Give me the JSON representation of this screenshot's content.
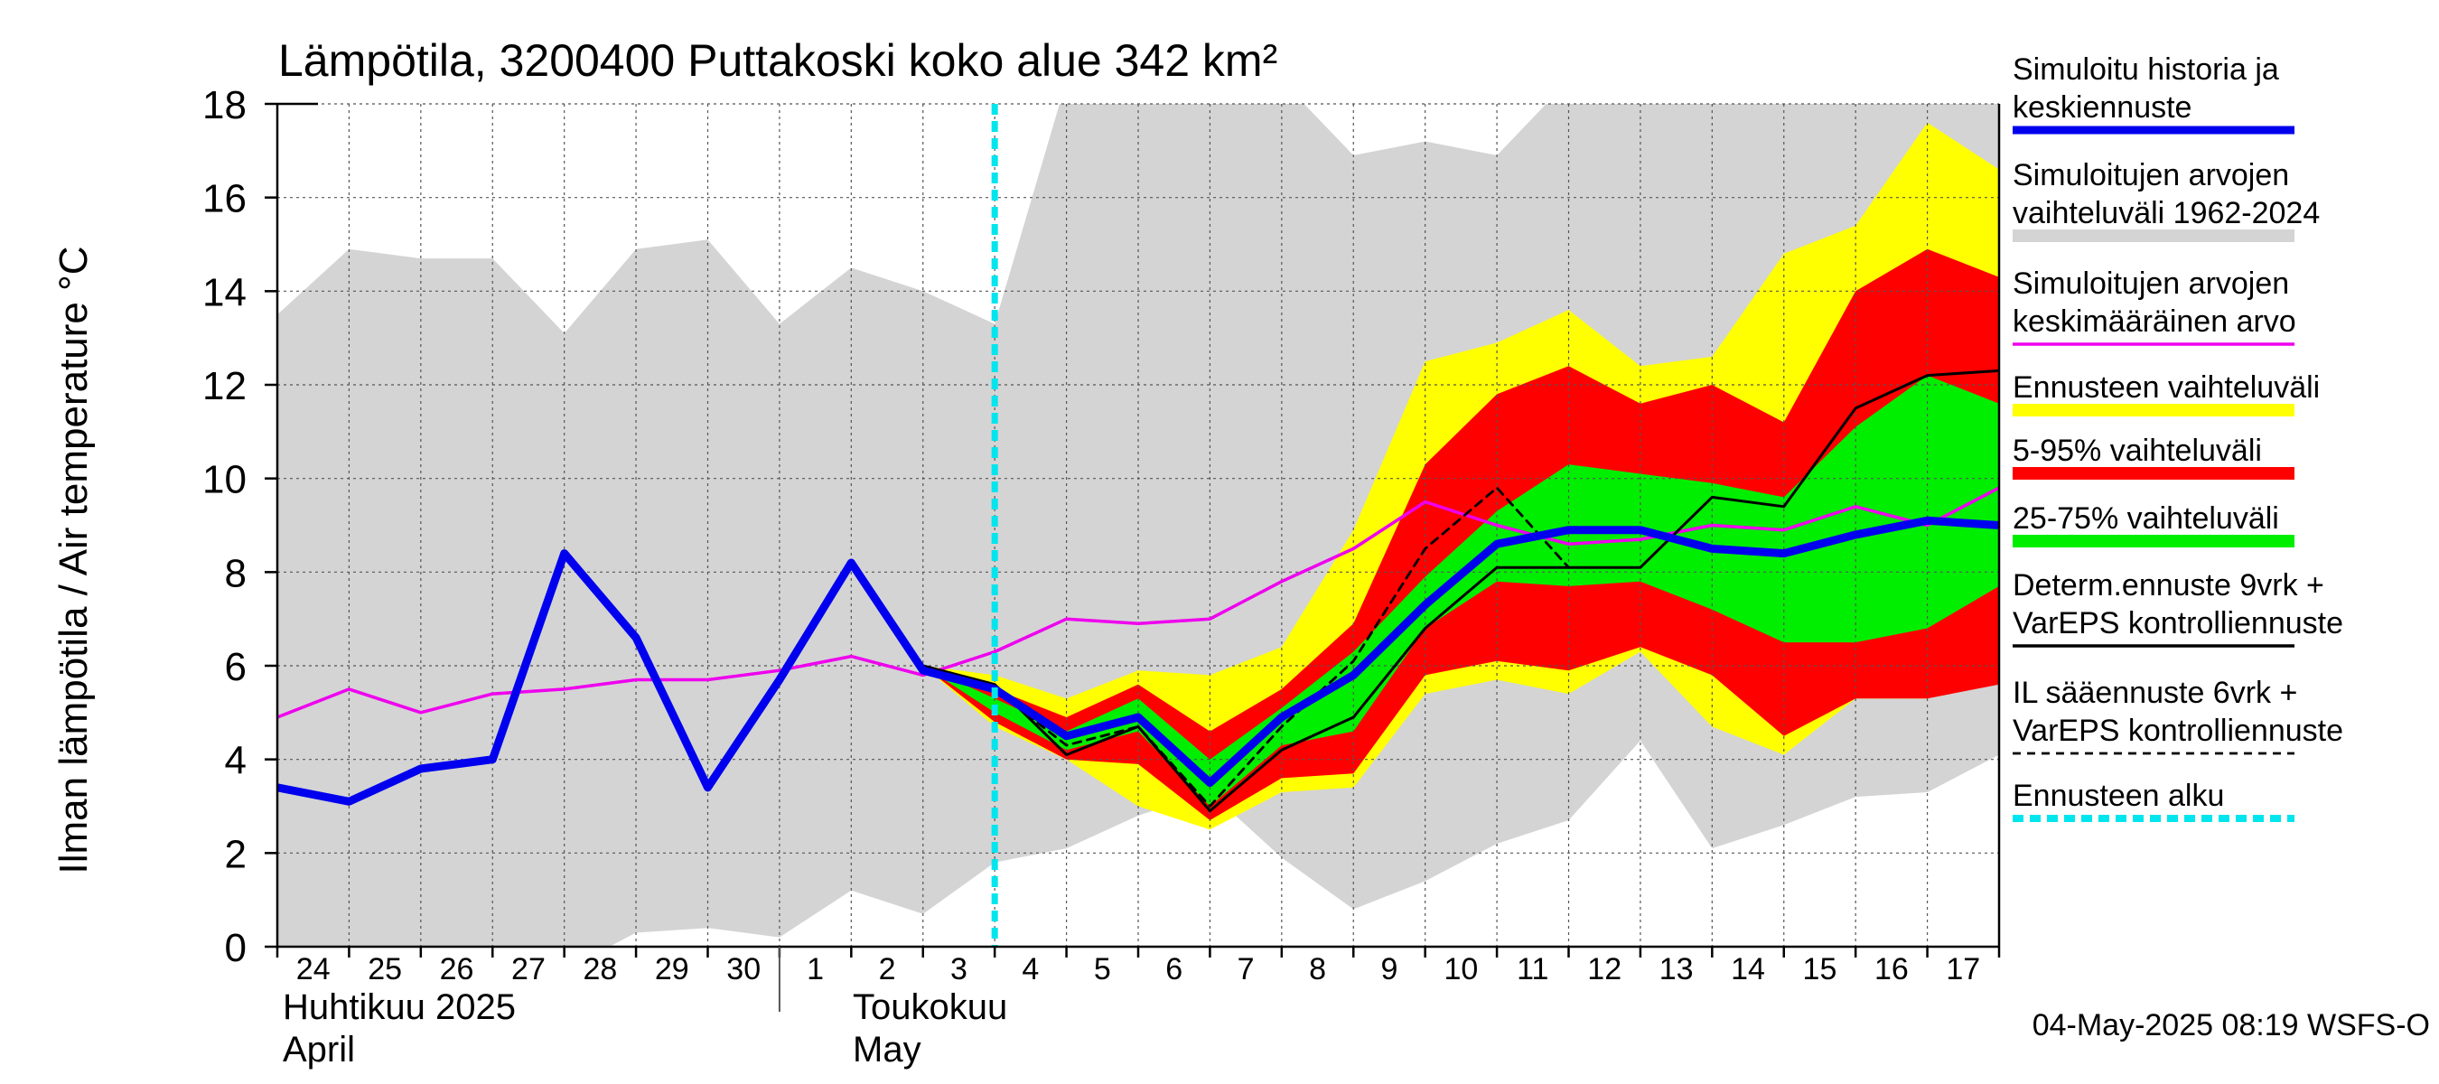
{
  "chart_data": {
    "type": "area",
    "title": "Lämpötila, 3200400 Puttakoski koko alue 342 km²",
    "ylabel": "Ilman lämpötila / Air temperature    °C",
    "ylim": [
      0,
      18
    ],
    "yticks": [
      0,
      2,
      4,
      6,
      8,
      10,
      12,
      14,
      16,
      18
    ],
    "xlim": [
      0,
      24
    ],
    "grid": true,
    "legend_position": "right",
    "x_tick_labels": [
      "24",
      "25",
      "26",
      "27",
      "28",
      "29",
      "30",
      "1",
      "2",
      "3",
      "4",
      "5",
      "6",
      "7",
      "8",
      "9",
      "10",
      "11",
      "12",
      "13",
      "14",
      "15",
      "16",
      "17"
    ],
    "month_labels": [
      {
        "fi": "Huhtikuu  2025",
        "en": "April"
      },
      {
        "fi": "Toukokuu",
        "en": "May"
      }
    ],
    "forecast_start_x": 10,
    "footer": "04-May-2025 08:19 WSFS-O",
    "legend": [
      {
        "label_lines": [
          "Simuloitu historia ja",
          "keskiennuste"
        ],
        "color": "#0000ee",
        "style": "thick"
      },
      {
        "label_lines": [
          "Simuloitujen arvojen",
          "vaihteluväli 1962-2024"
        ],
        "color": "#d4d4d4",
        "style": "band"
      },
      {
        "label_lines": [
          "Simuloitujen arvojen",
          "keskimääräinen arvo"
        ],
        "color": "#ee00ee",
        "style": "line"
      },
      {
        "label_lines": [
          "Ennusteen vaihteluväli"
        ],
        "color": "#ffff00",
        "style": "band"
      },
      {
        "label_lines": [
          "5-95% vaihteluväli"
        ],
        "color": "#ff0000",
        "style": "band"
      },
      {
        "label_lines": [
          "25-75% vaihteluväli"
        ],
        "color": "#00ee00",
        "style": "band"
      },
      {
        "label_lines": [
          "Determ.ennuste 9vrk +",
          "VarEPS kontrolliennuste"
        ],
        "color": "#000000",
        "style": "line"
      },
      {
        "label_lines": [
          "IL sääennuste 6vrk  +",
          "  VarEPS kontrolliennuste"
        ],
        "color": "#000000",
        "style": "dashed"
      },
      {
        "label_lines": [
          "Ennusteen alku"
        ],
        "color": "#00e5ee",
        "style": "dotted-thick"
      }
    ],
    "series": [
      {
        "name": "Simuloitujen arvojen vaihteluväli 1962-2024",
        "kind": "band",
        "color": "#d4d4d4",
        "x": [
          0,
          1,
          2,
          3,
          4,
          5,
          6,
          7,
          8,
          9,
          10,
          11,
          12,
          13,
          14,
          15,
          16,
          17,
          18,
          19,
          20,
          21,
          22,
          23,
          24
        ],
        "upper": [
          13.5,
          14.9,
          14.7,
          14.7,
          13.1,
          14.9,
          15.1,
          13.3,
          14.5,
          14.0,
          13.3,
          18.5,
          18.5,
          18.5,
          18.5,
          16.9,
          17.2,
          16.9,
          18.5,
          18.5,
          18.5,
          18.5,
          18.5,
          18.5,
          18.5
        ],
        "lower": [
          -0.5,
          -0.5,
          -0.5,
          -0.5,
          -0.5,
          0.3,
          0.4,
          0.2,
          1.2,
          0.7,
          1.8,
          2.1,
          2.8,
          3.3,
          1.9,
          0.8,
          1.4,
          2.2,
          2.7,
          4.4,
          2.1,
          2.6,
          3.2,
          3.3,
          4.1
        ]
      },
      {
        "name": "Ennusteen vaihteluväli",
        "kind": "band",
        "color": "#ffff00",
        "x": [
          9,
          10,
          11,
          12,
          13,
          14,
          15,
          16,
          17,
          18,
          19,
          20,
          21,
          22,
          23,
          24
        ],
        "upper": [
          6.0,
          5.8,
          5.3,
          5.9,
          5.8,
          6.4,
          8.9,
          12.5,
          12.9,
          13.6,
          12.4,
          12.6,
          14.8,
          15.4,
          17.6,
          16.6
        ],
        "lower": [
          6.0,
          4.7,
          4.0,
          3.0,
          2.5,
          3.3,
          3.4,
          5.4,
          5.7,
          5.4,
          6.3,
          4.7,
          4.1,
          5.3,
          5.3,
          5.7
        ]
      },
      {
        "name": "5-95% vaihteluväli",
        "kind": "band",
        "color": "#ff0000",
        "x": [
          9,
          10,
          11,
          12,
          13,
          14,
          15,
          16,
          17,
          18,
          19,
          20,
          21,
          22,
          23,
          24
        ],
        "upper": [
          6.0,
          5.5,
          4.9,
          5.6,
          4.6,
          5.5,
          6.9,
          10.3,
          11.8,
          12.4,
          11.6,
          12.0,
          11.2,
          14.0,
          14.9,
          14.3
        ],
        "lower": [
          6.0,
          4.8,
          4.0,
          3.9,
          2.7,
          3.6,
          3.7,
          5.8,
          6.1,
          5.9,
          6.4,
          5.8,
          4.5,
          5.3,
          5.3,
          5.6
        ]
      },
      {
        "name": "25-75% vaihteluväli",
        "kind": "band",
        "color": "#00ee00",
        "x": [
          9,
          10,
          11,
          12,
          13,
          14,
          15,
          16,
          17,
          18,
          19,
          20,
          21,
          22,
          23,
          24
        ],
        "upper": [
          6.0,
          5.3,
          4.6,
          5.3,
          4.0,
          5.1,
          6.3,
          7.9,
          9.3,
          10.3,
          10.1,
          9.9,
          9.6,
          11.1,
          12.2,
          11.6
        ],
        "lower": [
          6.0,
          5.0,
          4.2,
          4.6,
          3.0,
          4.3,
          4.6,
          6.8,
          7.8,
          7.7,
          7.8,
          7.2,
          6.5,
          6.5,
          6.8,
          7.7
        ]
      },
      {
        "name": "Simuloitujen arvojen keskimääräinen arvo",
        "kind": "line",
        "color": "#ee00ee",
        "width": 3.5,
        "x": [
          0,
          1,
          2,
          3,
          4,
          5,
          6,
          7,
          8,
          9,
          10,
          11,
          12,
          13,
          14,
          15,
          16,
          17,
          18,
          19,
          20,
          21,
          22,
          23,
          24
        ],
        "y": [
          4.9,
          5.5,
          5.0,
          5.4,
          5.5,
          5.7,
          5.7,
          5.9,
          6.2,
          5.8,
          6.3,
          7.0,
          6.9,
          7.0,
          7.8,
          8.5,
          9.5,
          9.0,
          8.6,
          8.7,
          9.0,
          8.9,
          9.4,
          9.0,
          9.8
        ]
      },
      {
        "name": "IL sääennuste 6vrk + VarEPS kontrolliennuste",
        "kind": "dashed",
        "color": "#000000",
        "width": 2.8,
        "x": [
          9,
          10,
          11,
          12,
          13,
          14,
          15,
          16,
          17,
          18
        ],
        "y": [
          6.0,
          5.5,
          4.3,
          4.7,
          3.0,
          4.7,
          6.1,
          8.5,
          9.8,
          8.1
        ]
      },
      {
        "name": "Determ.ennuste 9vrk + VarEPS kontrolliennuste",
        "kind": "line",
        "color": "#000000",
        "width": 3,
        "x": [
          8,
          9,
          10,
          11,
          12,
          13,
          14,
          15,
          16,
          17,
          18,
          19,
          20,
          21,
          22,
          23,
          24
        ],
        "y": [
          8.2,
          6.0,
          5.6,
          4.1,
          4.7,
          2.9,
          4.2,
          4.9,
          6.8,
          8.1,
          8.1,
          8.1,
          9.6,
          9.4,
          11.5,
          12.2,
          12.3
        ]
      },
      {
        "name": "Simuloitu historia ja keskiennuste",
        "kind": "line",
        "color": "#0000ee",
        "width": 9,
        "x": [
          0,
          1,
          2,
          3,
          4,
          5,
          6,
          7,
          8,
          9,
          10,
          11,
          12,
          13,
          14,
          15,
          16,
          17,
          18,
          19,
          20,
          21,
          22,
          23,
          24
        ],
        "y": [
          3.4,
          3.1,
          3.8,
          4.0,
          8.4,
          6.6,
          3.4,
          5.7,
          8.2,
          5.9,
          5.5,
          4.5,
          4.9,
          3.5,
          4.9,
          5.8,
          7.3,
          8.6,
          8.9,
          8.9,
          8.5,
          8.4,
          8.8,
          9.1,
          9.0
        ]
      }
    ]
  }
}
